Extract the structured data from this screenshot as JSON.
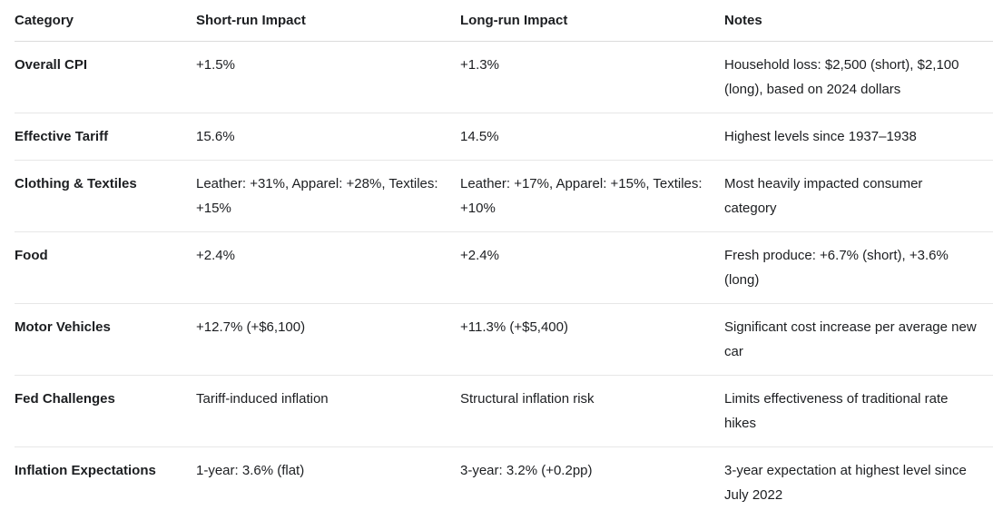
{
  "table": {
    "headers": [
      "Category",
      "Short-run Impact",
      "Long-run Impact",
      "Notes"
    ],
    "rows": [
      {
        "category": "Overall CPI",
        "short_run": "+1.5%",
        "long_run": "+1.3%",
        "notes": "Household loss: $2,500 (short), $2,100 (long), based on 2024 dollars"
      },
      {
        "category": "Effective Tariff",
        "short_run": "15.6%",
        "long_run": "14.5%",
        "notes": "Highest levels since 1937–1938"
      },
      {
        "category": "Clothing & Textiles",
        "short_run": "Leather: +31%, Apparel: +28%, Textiles: +15%",
        "long_run": "Leather: +17%, Apparel: +15%, Textiles: +10%",
        "notes": "Most heavily impacted consumer category"
      },
      {
        "category": "Food",
        "short_run": "+2.4%",
        "long_run": "+2.4%",
        "notes": "Fresh produce: +6.7% (short), +3.6% (long)"
      },
      {
        "category": "Motor Vehicles",
        "short_run": "+12.7% (+$6,100)",
        "long_run": "+11.3% (+$5,400)",
        "notes": "Significant cost increase per average new car"
      },
      {
        "category": "Fed Challenges",
        "short_run": "Tariff-induced inflation",
        "long_run": "Structural inflation risk",
        "notes": "Limits effectiveness of traditional rate hikes"
      },
      {
        "category": "Inflation Expectations",
        "short_run": "1-year: 3.6% (flat)",
        "long_run": "3-year: 3.2% (+0.2pp)",
        "notes": "3-year expectation at highest level since July 2022"
      }
    ]
  },
  "colors": {
    "background": "#ffffff",
    "text": "#1c1e21",
    "border": "#e7e7e7"
  }
}
